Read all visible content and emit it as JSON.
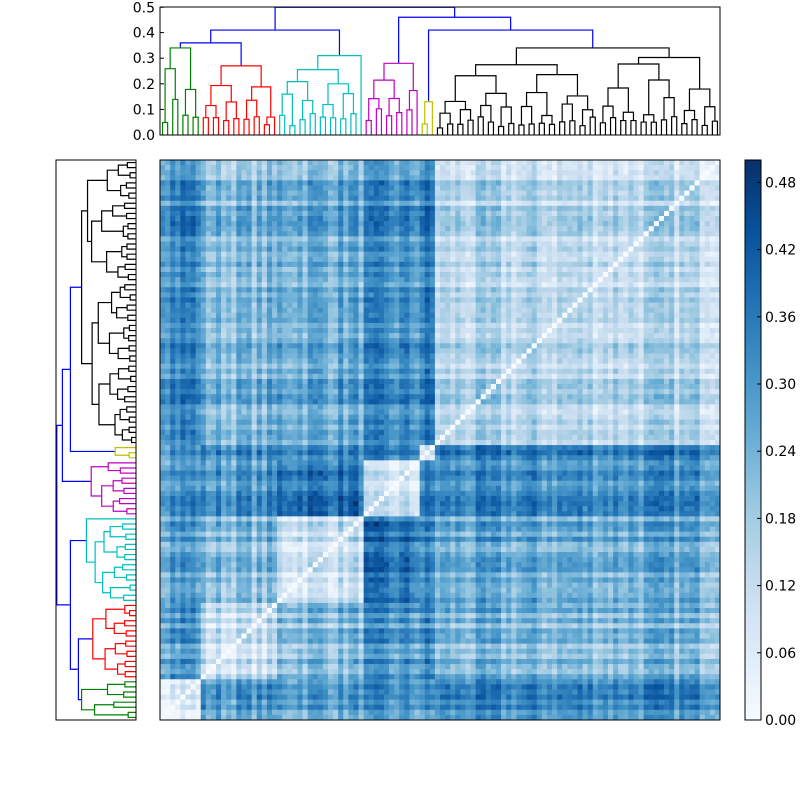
{
  "chart_data": {
    "type": "heatmap",
    "title": "",
    "xlabel": "",
    "ylabel": "",
    "leaf_count": 110,
    "colormap": "Blues",
    "colorbar": {
      "vmin": 0.0,
      "vmax": 0.5,
      "ticks": [
        0.0,
        0.06,
        0.12,
        0.18,
        0.24,
        0.3,
        0.36,
        0.42,
        0.48
      ],
      "tick_labels": [
        "0.00",
        "0.06",
        "0.12",
        "0.18",
        "0.24",
        "0.30",
        "0.36",
        "0.42",
        "0.48"
      ]
    },
    "dendrogram": {
      "height_axis": {
        "ylim": [
          0,
          0.5
        ],
        "ticks": [
          0.0,
          0.1,
          0.2,
          0.3,
          0.4,
          0.5
        ],
        "tick_labels": [
          "0.0",
          "0.1",
          "0.2",
          "0.3",
          "0.4",
          "0.5"
        ]
      },
      "link_color": "#0000ff",
      "clusters": [
        {
          "color": "#008000",
          "leaves": 8,
          "height": 0.34
        },
        {
          "color": "#ff0000",
          "leaves": 15,
          "height": 0.27
        },
        {
          "color": "#00bfbf",
          "leaves": 17,
          "height": 0.31
        },
        {
          "color": "#bf00bf",
          "leaves": 11,
          "height": 0.28
        },
        {
          "color": "#bfbf00",
          "leaves": 3,
          "height": 0.13
        },
        {
          "color": "#000000",
          "leaves": 56,
          "height": 0.34
        }
      ],
      "upper_links": [
        {
          "join": [
            0,
            1
          ],
          "height": 0.36
        },
        {
          "join": [
            "0-1",
            2
          ],
          "height": 0.41
        },
        {
          "join": [
            "0-2",
            3
          ],
          "height": 0.47
        },
        {
          "join": [
            4,
            5
          ],
          "height": 0.41
        },
        {
          "join": [
            3,
            "4-5"
          ],
          "height": 0.46
        },
        {
          "join": [
            "0-2",
            "3-5"
          ],
          "height": 0.52
        }
      ]
    }
  }
}
